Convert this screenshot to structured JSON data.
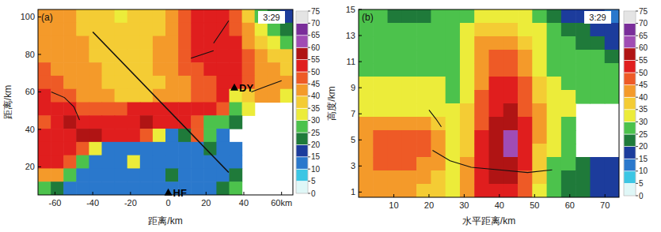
{
  "chart_data": [
    {
      "type": "heatmap",
      "title": "(a)",
      "time_label": "3:29",
      "x_label": "距离/km",
      "y_label": "距离/km",
      "xlim": [
        -69,
        66
      ],
      "ylim": [
        5,
        104
      ],
      "xticks": [
        -60,
        -40,
        -20,
        0,
        20,
        40,
        {
          "value": 60,
          "label": "60km"
        }
      ],
      "yticks": [
        20,
        40,
        60,
        80,
        100
      ],
      "colorbar": {
        "range": [
          0,
          75
        ],
        "ticks": [
          0,
          5,
          10,
          15,
          20,
          25,
          30,
          35,
          40,
          45,
          50,
          55,
          60,
          65,
          70,
          75
        ],
        "colors": [
          "#dff7f7",
          "#3cc6e4",
          "#2a78cc",
          "#1c3c9c",
          "#1f7a3a",
          "#4cc24c",
          "#ecec3a",
          "#f4cc34",
          "#f49a2a",
          "#ee5a26",
          "#e01e1e",
          "#b01414",
          "#a04cb4",
          "#7a2e9a",
          "#e4e4e4"
        ]
      },
      "cells": [
        [
          40,
          40,
          40,
          35,
          35,
          35,
          30,
          35,
          35,
          35,
          40,
          45,
          50,
          50,
          50,
          45,
          35,
          25,
          20,
          15
        ],
        [
          40,
          40,
          40,
          35,
          35,
          35,
          35,
          35,
          35,
          35,
          40,
          45,
          50,
          50,
          50,
          45,
          40,
          30,
          25,
          20
        ],
        [
          40,
          40,
          40,
          40,
          35,
          35,
          35,
          35,
          35,
          40,
          40,
          45,
          50,
          50,
          50,
          50,
          40,
          35,
          30,
          25
        ],
        [
          40,
          40,
          40,
          40,
          35,
          35,
          35,
          35,
          35,
          40,
          40,
          45,
          50,
          50,
          50,
          50,
          45,
          40,
          35,
          35
        ],
        [
          45,
          40,
          40,
          40,
          40,
          35,
          35,
          35,
          35,
          40,
          40,
          45,
          45,
          50,
          50,
          50,
          45,
          40,
          40,
          35
        ],
        [
          45,
          45,
          40,
          40,
          40,
          35,
          35,
          35,
          35,
          35,
          40,
          40,
          45,
          45,
          50,
          50,
          45,
          40,
          40,
          40
        ],
        [
          50,
          45,
          45,
          40,
          40,
          40,
          35,
          35,
          35,
          40,
          40,
          40,
          45,
          45,
          50,
          30,
          35,
          40,
          40,
          30
        ],
        [
          50,
          50,
          50,
          45,
          45,
          45,
          45,
          50,
          50,
          50,
          50,
          50,
          50,
          50,
          45,
          25,
          30,
          null,
          null,
          null
        ],
        [
          45,
          50,
          55,
          50,
          50,
          50,
          50,
          50,
          55,
          50,
          50,
          50,
          45,
          25,
          25,
          20,
          null,
          null,
          null,
          null
        ],
        [
          50,
          50,
          50,
          55,
          55,
          50,
          50,
          50,
          45,
          30,
          12,
          20,
          45,
          25,
          12,
          null,
          null,
          null,
          null,
          null
        ],
        [
          50,
          50,
          50,
          45,
          30,
          12,
          12,
          12,
          12,
          12,
          12,
          12,
          12,
          20,
          12,
          12,
          null,
          null,
          null,
          null
        ],
        [
          50,
          50,
          45,
          25,
          12,
          12,
          12,
          30,
          12,
          12,
          12,
          12,
          12,
          12,
          12,
          12,
          null,
          null,
          null,
          null
        ],
        [
          40,
          40,
          25,
          12,
          12,
          12,
          12,
          12,
          12,
          12,
          20,
          12,
          12,
          12,
          12,
          20,
          null,
          null,
          null,
          null
        ],
        [
          25,
          20,
          12,
          12,
          12,
          12,
          12,
          12,
          12,
          12,
          12,
          12,
          12,
          12,
          20,
          25,
          null,
          null,
          null,
          null
        ]
      ],
      "lines": [
        [
          [
            -40,
            92
          ],
          [
            32,
            17
          ]
        ],
        [
          [
            -62,
            60
          ],
          [
            -55,
            57
          ],
          [
            -50,
            52
          ],
          [
            -47,
            45
          ]
        ],
        [
          [
            12,
            78
          ],
          [
            18,
            80
          ],
          [
            24,
            82
          ]
        ],
        [
          [
            24,
            86
          ],
          [
            28,
            92
          ],
          [
            32,
            98
          ]
        ],
        [
          [
            44,
            60
          ],
          [
            52,
            63
          ],
          [
            60,
            66
          ]
        ]
      ],
      "markers": [
        {
          "label": "DY",
          "x": 35,
          "y": 62
        },
        {
          "label": "HF",
          "x": 0,
          "y": 6
        }
      ]
    },
    {
      "type": "heatmap",
      "title": "(b)",
      "time_label": "3:29",
      "x_label": "水平距离/km",
      "y_label": "高度/km",
      "xlim": [
        0,
        74
      ],
      "ylim": [
        0.6,
        15
      ],
      "xticks": [
        10,
        20,
        30,
        40,
        50,
        60,
        70
      ],
      "yticks": [
        1,
        3,
        5,
        7,
        9,
        11,
        13,
        15
      ],
      "colorbar": {
        "range": [
          0,
          75
        ],
        "ticks": [
          0,
          5,
          10,
          15,
          20,
          25,
          30,
          35,
          40,
          45,
          50,
          55,
          60,
          65,
          70,
          75
        ],
        "colors": [
          "#dff7f7",
          "#3cc6e4",
          "#2a78cc",
          "#1c3c9c",
          "#1f7a3a",
          "#4cc24c",
          "#ecec3a",
          "#f4cc34",
          "#f49a2a",
          "#ee5a26",
          "#e01e1e",
          "#b01414",
          "#a04cb4",
          "#7a2e9a",
          "#e4e4e4"
        ]
      },
      "cells": [
        [
          25,
          25,
          20,
          20,
          20,
          25,
          25,
          25,
          30,
          30,
          30,
          30,
          25,
          20,
          15,
          15,
          15,
          12
        ],
        [
          25,
          25,
          25,
          25,
          25,
          25,
          25,
          30,
          35,
          35,
          35,
          30,
          30,
          25,
          20,
          20,
          15,
          15
        ],
        [
          25,
          25,
          25,
          25,
          25,
          25,
          25,
          30,
          40,
          40,
          40,
          35,
          30,
          25,
          25,
          20,
          20,
          15
        ],
        [
          25,
          25,
          25,
          25,
          25,
          25,
          25,
          30,
          40,
          45,
          45,
          40,
          30,
          25,
          25,
          25,
          25,
          20
        ],
        [
          25,
          25,
          25,
          25,
          25,
          25,
          25,
          30,
          40,
          45,
          45,
          40,
          30,
          25,
          25,
          25,
          25,
          25
        ],
        [
          30,
          30,
          30,
          30,
          30,
          30,
          25,
          30,
          40,
          50,
          50,
          45,
          35,
          30,
          25,
          25,
          25,
          25
        ],
        [
          30,
          30,
          30,
          30,
          30,
          30,
          25,
          30,
          45,
          50,
          50,
          45,
          35,
          30,
          30,
          25,
          25,
          25
        ],
        [
          30,
          30,
          30,
          30,
          30,
          30,
          30,
          35,
          45,
          50,
          55,
          45,
          40,
          30,
          30,
          null,
          null,
          null
        ],
        [
          40,
          40,
          40,
          40,
          40,
          35,
          30,
          35,
          45,
          55,
          55,
          50,
          40,
          30,
          25,
          null,
          null,
          null
        ],
        [
          40,
          45,
          45,
          45,
          45,
          40,
          30,
          35,
          50,
          55,
          60,
          50,
          40,
          30,
          25,
          null,
          null,
          null
        ],
        [
          40,
          45,
          45,
          45,
          45,
          40,
          30,
          35,
          50,
          55,
          60,
          50,
          35,
          30,
          25,
          null,
          null,
          null
        ],
        [
          40,
          45,
          45,
          45,
          40,
          40,
          30,
          40,
          50,
          55,
          55,
          50,
          35,
          25,
          25,
          20,
          15,
          15
        ],
        [
          40,
          40,
          40,
          40,
          40,
          35,
          30,
          40,
          50,
          55,
          55,
          45,
          35,
          25,
          20,
          20,
          15,
          15
        ],
        [
          40,
          40,
          40,
          40,
          35,
          35,
          30,
          40,
          50,
          50,
          50,
          45,
          30,
          25,
          20,
          20,
          15,
          15
        ]
      ],
      "lines": [
        [
          [
            20,
            7.3
          ],
          [
            22,
            6.6
          ],
          [
            23.5,
            6.0
          ]
        ],
        [
          [
            21,
            4.2
          ],
          [
            26,
            3.4
          ],
          [
            32,
            2.9
          ],
          [
            40,
            2.7
          ],
          [
            48,
            2.5
          ],
          [
            55,
            2.7
          ]
        ]
      ]
    }
  ]
}
